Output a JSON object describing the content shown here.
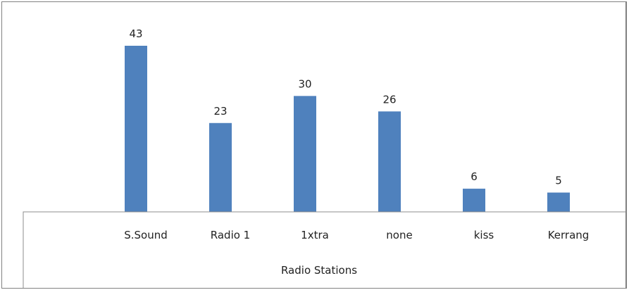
{
  "chart_data": {
    "type": "bar",
    "categories": [
      "S.Sound",
      "Radio 1",
      "1xtra",
      "none",
      "kiss",
      "Kerrang"
    ],
    "values": [
      43,
      23,
      30,
      26,
      6,
      5
    ],
    "title": "",
    "xlabel": "Radio Stations",
    "ylabel": "",
    "ylim": [
      0,
      48
    ],
    "grid": false,
    "legend": "none",
    "bar_color": "#4f81bd",
    "data_labels": true
  }
}
